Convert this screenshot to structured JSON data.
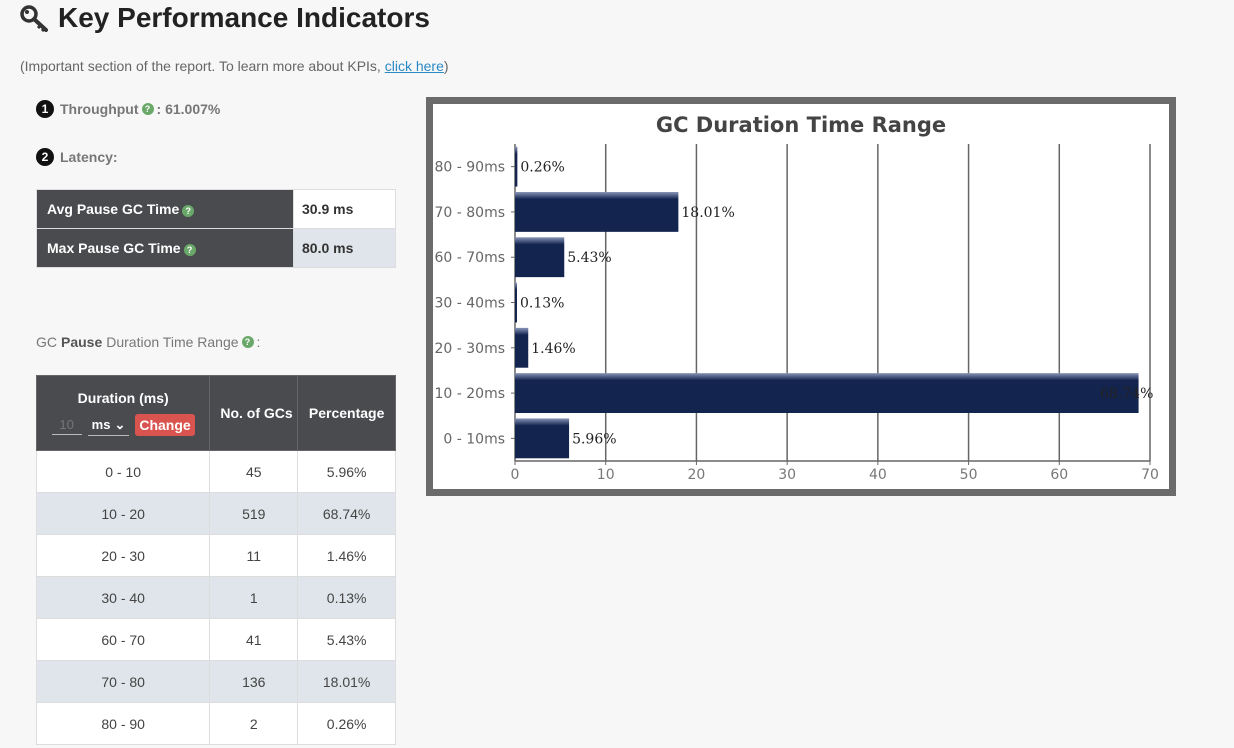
{
  "header": {
    "title": "Key Performance Indicators",
    "subtitle_prefix": "(Important section of the report. To learn more about KPIs, ",
    "subtitle_link": "click here",
    "subtitle_suffix": ")"
  },
  "kpi": {
    "throughput_badge": "1",
    "throughput_label": "Throughput",
    "throughput_value": ": 61.007%",
    "latency_badge": "2",
    "latency_label": "Latency:"
  },
  "latency_table": {
    "rows": [
      {
        "label": "Avg Pause GC Time",
        "value": "30.9 ms"
      },
      {
        "label": "Max Pause GC Time",
        "value": "80.0 ms"
      }
    ]
  },
  "range_caption": {
    "prefix": "GC",
    "bold": "Pause",
    "suffix": "Duration Time Range",
    "colon": ":"
  },
  "duration_table": {
    "headers": {
      "duration": "Duration (ms)",
      "gcs": "No. of GCs",
      "percentage": "Percentage"
    },
    "unit_input_placeholder": "10",
    "unit_select": "ms",
    "change_button": "Change",
    "rows": [
      {
        "range": "0 - 10",
        "gcs": "45",
        "pct": "5.96%"
      },
      {
        "range": "10 - 20",
        "gcs": "519",
        "pct": "68.74%"
      },
      {
        "range": "20 - 30",
        "gcs": "11",
        "pct": "1.46%"
      },
      {
        "range": "30 - 40",
        "gcs": "1",
        "pct": "0.13%"
      },
      {
        "range": "60 - 70",
        "gcs": "41",
        "pct": "5.43%"
      },
      {
        "range": "70 - 80",
        "gcs": "136",
        "pct": "18.01%"
      },
      {
        "range": "80 - 90",
        "gcs": "2",
        "pct": "0.26%"
      }
    ]
  },
  "chart_data": {
    "type": "bar",
    "orientation": "horizontal",
    "title": "GC Duration Time Range",
    "categories": [
      "0 - 10ms",
      "10 - 20ms",
      "20 - 30ms",
      "30 - 40ms",
      "60 - 70ms",
      "70 - 80ms",
      "80 - 90ms"
    ],
    "values": [
      5.96,
      68.74,
      1.46,
      0.13,
      5.43,
      18.01,
      0.26
    ],
    "data_labels": [
      "5.96%",
      "68.74%",
      "1.46%",
      "0.13%",
      "5.43%",
      "18.01%",
      "0.26%"
    ],
    "xlim": [
      0,
      70
    ],
    "xticks": [
      0,
      10,
      20,
      30,
      40,
      50,
      60,
      70
    ],
    "grid": true,
    "bar_color": "#13244f"
  }
}
